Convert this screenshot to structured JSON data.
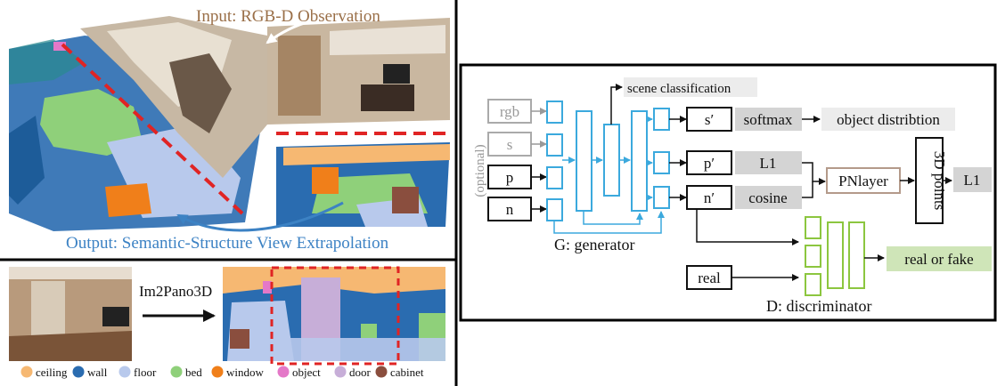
{
  "colors": {
    "ceiling": "#f6b872",
    "wall": "#2a6cb0",
    "floor": "#b8c9ec",
    "bed": "#8fd07a",
    "window": "#f07f1a",
    "object": "#e478c8",
    "door": "#c7aed8",
    "cabinet": "#8a4e3e",
    "generator": "#3ba9dd",
    "discriminator": "#8cc63f",
    "gray_box": "#d4d4d4",
    "light_box": "#ececec",
    "green_box": "#cfe5b8",
    "annotation_red": "#e02424",
    "input_brown": "#9a6f48",
    "output_blue": "#3c82c4"
  },
  "left_panel": {
    "input_label": "Input: RGB-D Observation",
    "output_label": "Output: Semantic-Structure View Extrapolation",
    "method_label": "Im2Pano3D",
    "legend": [
      {
        "name": "ceiling",
        "color": "#f6b872"
      },
      {
        "name": "wall",
        "color": "#2a6cb0"
      },
      {
        "name": "floor",
        "color": "#b8c9ec"
      },
      {
        "name": "bed",
        "color": "#8fd07a"
      },
      {
        "name": "window",
        "color": "#f07f1a"
      },
      {
        "name": "object",
        "color": "#e478c8"
      },
      {
        "name": "door",
        "color": "#c7aed8"
      },
      {
        "name": "cabinet",
        "color": "#8a4e3e"
      }
    ]
  },
  "diagram": {
    "optional_label": "(optional)",
    "inputs": {
      "rgb": "rgb",
      "s": "s",
      "p": "p",
      "n": "n",
      "real": "real"
    },
    "scene_classification": "scene classification",
    "outputs": {
      "s_prime": "s′",
      "p_prime": "p′",
      "n_prime": "n′"
    },
    "losses": {
      "softmax": "softmax",
      "l1_a": "L1",
      "cosine": "cosine",
      "l1_b": "L1"
    },
    "object_distribution": "object distribtion",
    "pnlayer": "PNlayer",
    "points_3d": "3D points",
    "real_or_fake": "real or fake",
    "generator_label": "G: generator",
    "discriminator_label": "D: discriminator"
  }
}
